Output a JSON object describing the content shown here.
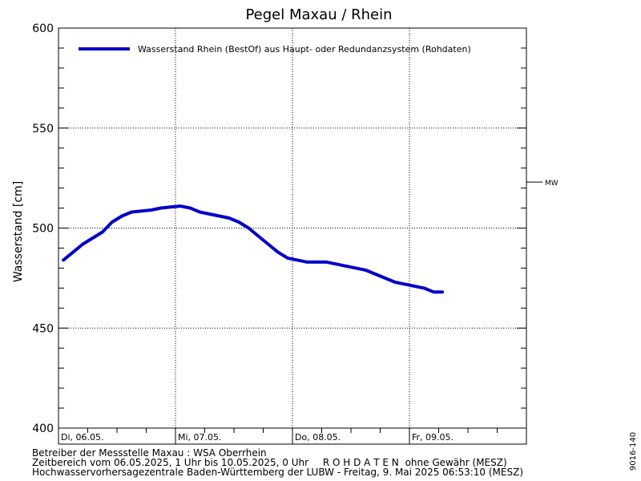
{
  "chart_data": {
    "type": "line",
    "title": "Pegel Maxau / Rhein",
    "ylabel": "Wasserstand [cm]",
    "xlabel": "",
    "ylim": [
      400,
      600
    ],
    "yticks": [
      400,
      450,
      500,
      550,
      600
    ],
    "grid": true,
    "legend_position": "top-left",
    "x_day_labels": [
      "Di, 06.05.",
      "Mi, 07.05.",
      "Do, 08.05.",
      "Fr, 09.05."
    ],
    "reference_lines": [
      {
        "label": "MW",
        "value": 523
      }
    ],
    "series": [
      {
        "name": "Wasserstand Rhein (BestOf)  aus Haupt- oder Redundanzsystem (Rohdaten)",
        "color": "#0000c8",
        "x": [
          "2025-05-06 01:00",
          "2025-05-06 03:00",
          "2025-05-06 05:00",
          "2025-05-06 07:00",
          "2025-05-06 09:00",
          "2025-05-06 11:00",
          "2025-05-06 13:00",
          "2025-05-06 15:00",
          "2025-05-06 17:00",
          "2025-05-06 19:00",
          "2025-05-06 21:00",
          "2025-05-06 23:00",
          "2025-05-07 01:00",
          "2025-05-07 03:00",
          "2025-05-07 05:00",
          "2025-05-07 07:00",
          "2025-05-07 09:00",
          "2025-05-07 11:00",
          "2025-05-07 13:00",
          "2025-05-07 15:00",
          "2025-05-07 17:00",
          "2025-05-07 19:00",
          "2025-05-07 21:00",
          "2025-05-07 23:00",
          "2025-05-08 01:00",
          "2025-05-08 03:00",
          "2025-05-08 05:00",
          "2025-05-08 07:00",
          "2025-05-08 09:00",
          "2025-05-08 11:00",
          "2025-05-08 13:00",
          "2025-05-08 15:00",
          "2025-05-08 17:00",
          "2025-05-08 19:00",
          "2025-05-08 21:00",
          "2025-05-08 23:00",
          "2025-05-09 01:00",
          "2025-05-09 03:00",
          "2025-05-09 05:00",
          "2025-05-09 06:45"
        ],
        "y": [
          484,
          488,
          492,
          495,
          498,
          503,
          506,
          508,
          508.5,
          509,
          510,
          510.5,
          511,
          510,
          508,
          507,
          506,
          505,
          503,
          500,
          496,
          492,
          488,
          485,
          484,
          483,
          483,
          483,
          482,
          481,
          480,
          479,
          477,
          475,
          473,
          472,
          471,
          470,
          468,
          468
        ]
      }
    ]
  },
  "footer": {
    "line1": "Betreiber der Messstelle Maxau : WSA Oberrhein",
    "line2_prefix": "Zeitbereich vom 06.05.2025, 1 Uhr bis 10.05.2025, 0 Uhr",
    "line2_raw": "R O H D A T E N",
    "line2_suffix": "ohne Gewähr (MESZ)",
    "line3": "Hochwasservorhersagezentrale Baden-Württemberg der LUBW - Freitag, 9. Mai 2025 06:53:10 (MESZ)"
  },
  "side_code": "9016-140"
}
